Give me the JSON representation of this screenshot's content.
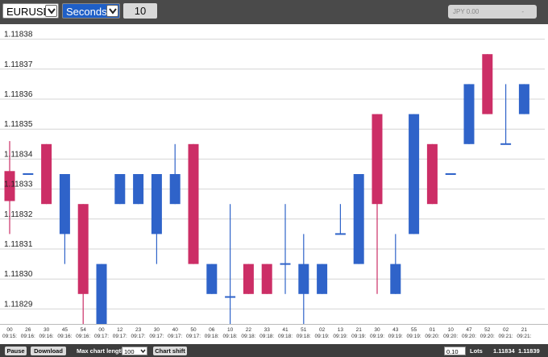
{
  "toolbar": {
    "symbol": "EURUSD",
    "timeframe": "Seconds",
    "count": "10",
    "jpy_label": "JPY 0.00",
    "jpy_right": "-"
  },
  "chart_data": {
    "type": "candlestick",
    "ylim": [
      1.118285,
      1.118385
    ],
    "ytick_values": [
      1.11829,
      1.1183,
      1.11831,
      1.11832,
      1.11833,
      1.11834,
      1.11835,
      1.11836,
      1.11837,
      1.11838
    ],
    "ytick_labels": [
      "1.11829",
      "1.11830",
      "1.11831",
      "1.11832",
      "1.11833",
      "1.11834",
      "1.11835",
      "1.11836",
      "1.11837",
      "1.11838"
    ],
    "colors": {
      "up": "#2f63c9",
      "down": "#cc2e66",
      "grid": "#d4d4d4"
    },
    "candles": [
      {
        "t1": "00",
        "t2": "09:15:",
        "o": 1.118336,
        "c": 1.118326,
        "h": 1.118346,
        "l": 1.118315
      },
      {
        "t1": "26",
        "t2": "09:16:",
        "o": 1.118335,
        "c": 1.118335,
        "h": 1.118335,
        "l": 1.118335
      },
      {
        "t1": "30",
        "t2": "09:16:",
        "o": 1.118345,
        "c": 1.118325,
        "h": 1.118345,
        "l": 1.118325
      },
      {
        "t1": "45",
        "t2": "09:16:",
        "o": 1.118315,
        "c": 1.118335,
        "h": 1.118335,
        "l": 1.118305
      },
      {
        "t1": "54",
        "t2": "09:16:",
        "o": 1.118325,
        "c": 1.118295,
        "h": 1.118325,
        "l": 1.118285
      },
      {
        "t1": "00",
        "t2": "09:17:",
        "o": 1.118285,
        "c": 1.118305,
        "h": 1.118305,
        "l": 1.118285
      },
      {
        "t1": "12",
        "t2": "09:17:",
        "o": 1.118325,
        "c": 1.118335,
        "h": 1.118335,
        "l": 1.118325
      },
      {
        "t1": "23",
        "t2": "09:17:",
        "o": 1.118325,
        "c": 1.118335,
        "h": 1.118335,
        "l": 1.118325
      },
      {
        "t1": "30",
        "t2": "09:17:",
        "o": 1.118315,
        "c": 1.118335,
        "h": 1.118335,
        "l": 1.118305
      },
      {
        "t1": "40",
        "t2": "09:17:",
        "o": 1.118325,
        "c": 1.118335,
        "h": 1.118345,
        "l": 1.118325
      },
      {
        "t1": "50",
        "t2": "09:17:",
        "o": 1.118345,
        "c": 1.118305,
        "h": 1.118345,
        "l": 1.118305
      },
      {
        "t1": "06",
        "t2": "09:18:",
        "o": 1.118295,
        "c": 1.118305,
        "h": 1.118305,
        "l": 1.118295
      },
      {
        "t1": "10",
        "t2": "09:18:",
        "o": 1.118294,
        "c": 1.118294,
        "h": 1.118325,
        "l": 1.118285
      },
      {
        "t1": "22",
        "t2": "09:18:",
        "o": 1.118305,
        "c": 1.118295,
        "h": 1.118305,
        "l": 1.118295
      },
      {
        "t1": "33",
        "t2": "09:18:",
        "o": 1.118305,
        "c": 1.118295,
        "h": 1.118305,
        "l": 1.118295
      },
      {
        "t1": "41",
        "t2": "09:18:",
        "o": 1.118305,
        "c": 1.118305,
        "h": 1.118325,
        "l": 1.118295
      },
      {
        "t1": "51",
        "t2": "09:18:",
        "o": 1.118295,
        "c": 1.118305,
        "h": 1.118315,
        "l": 1.118285
      },
      {
        "t1": "02",
        "t2": "09:19:",
        "o": 1.118295,
        "c": 1.118305,
        "h": 1.118305,
        "l": 1.118295
      },
      {
        "t1": "13",
        "t2": "09:19:",
        "o": 1.118315,
        "c": 1.118315,
        "h": 1.118325,
        "l": 1.118315
      },
      {
        "t1": "21",
        "t2": "09:19:",
        "o": 1.118305,
        "c": 1.118335,
        "h": 1.118335,
        "l": 1.118305
      },
      {
        "t1": "30",
        "t2": "09:19:",
        "o": 1.118355,
        "c": 1.118325,
        "h": 1.118355,
        "l": 1.118295
      },
      {
        "t1": "43",
        "t2": "09:19:",
        "o": 1.118295,
        "c": 1.118305,
        "h": 1.118315,
        "l": 1.118295
      },
      {
        "t1": "55",
        "t2": "09:19:",
        "o": 1.118315,
        "c": 1.118355,
        "h": 1.118355,
        "l": 1.118315
      },
      {
        "t1": "01",
        "t2": "09:20:",
        "o": 1.118345,
        "c": 1.118325,
        "h": 1.118345,
        "l": 1.118325
      },
      {
        "t1": "10",
        "t2": "09:20:",
        "o": 1.118335,
        "c": 1.118335,
        "h": 1.118335,
        "l": 1.118335
      },
      {
        "t1": "47",
        "t2": "09:20:",
        "o": 1.118345,
        "c": 1.118365,
        "h": 1.118365,
        "l": 1.118345
      },
      {
        "t1": "52",
        "t2": "09:20:",
        "o": 1.118375,
        "c": 1.118355,
        "h": 1.118375,
        "l": 1.118355
      },
      {
        "t1": "02",
        "t2": "09:21:",
        "o": 1.118345,
        "c": 1.118345,
        "h": 1.118365,
        "l": 1.118345
      },
      {
        "t1": "21",
        "t2": "09:21:",
        "o": 1.118355,
        "c": 1.118365,
        "h": 1.118365,
        "l": 1.118355
      }
    ]
  },
  "footer": {
    "pause_label": "Pause",
    "download_label": "Download",
    "max_length_label": "Max chart length:",
    "max_length_value": "100",
    "chart_shift_label": "Chart shift",
    "lots_value": "0.10",
    "lots_label": "Lots",
    "bid": "1.11834",
    "ask": "1.11839"
  }
}
